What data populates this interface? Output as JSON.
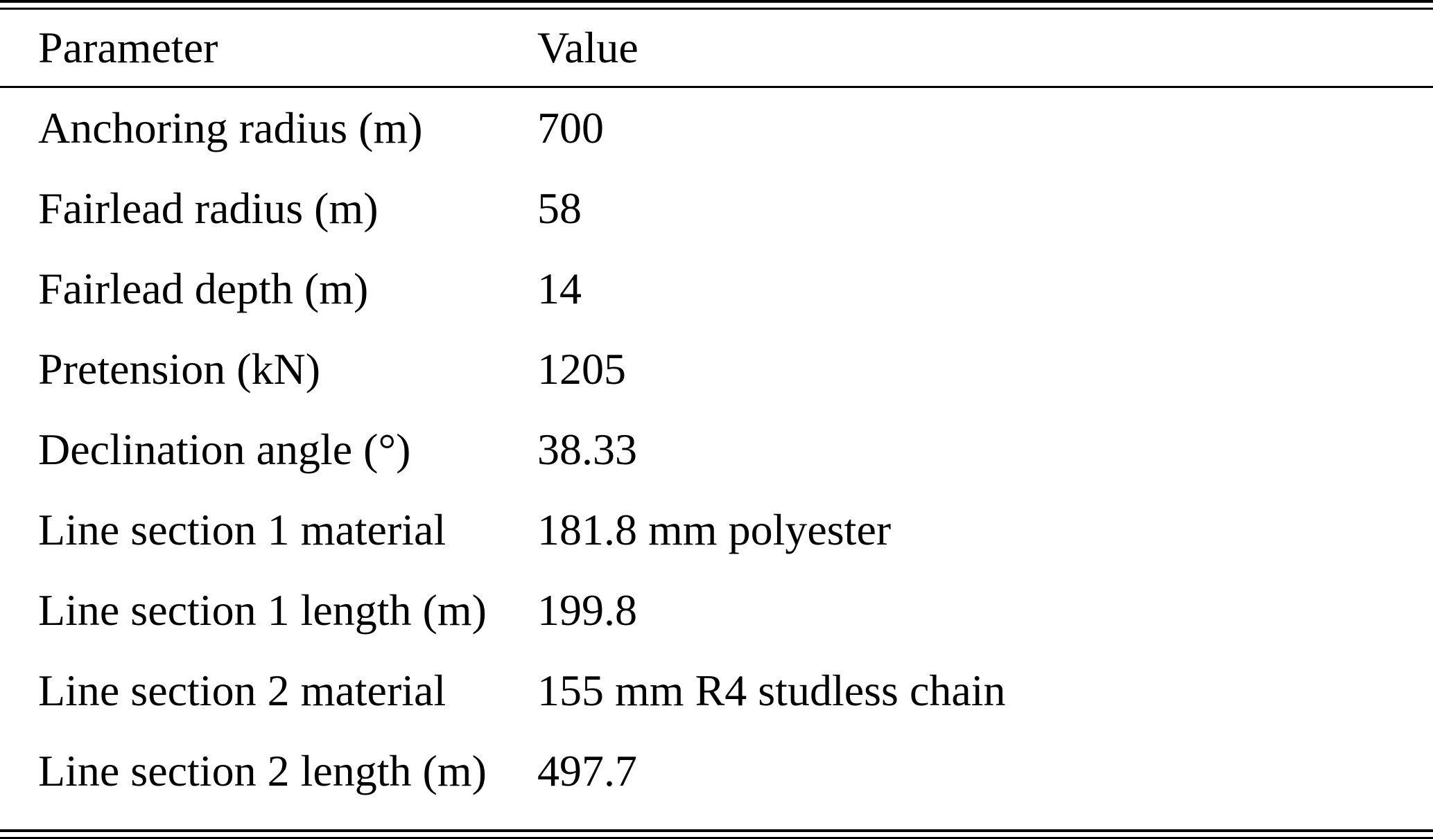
{
  "table": {
    "headers": {
      "parameter": "Parameter",
      "value": "Value"
    },
    "rows": [
      {
        "parameter": "Anchoring radius (m)",
        "value": "700"
      },
      {
        "parameter": "Fairlead radius (m)",
        "value": "58"
      },
      {
        "parameter": "Fairlead depth (m)",
        "value": "14"
      },
      {
        "parameter": "Pretension (kN)",
        "value": "1205"
      },
      {
        "parameter": "Declination angle (°)",
        "value": "38.33"
      },
      {
        "parameter": "Line section 1 material",
        "value": "181.8 mm polyester"
      },
      {
        "parameter": "Line section 1 length (m)",
        "value": "199.8"
      },
      {
        "parameter": "Line section 2 material",
        "value": "155 mm R4 studless chain"
      },
      {
        "parameter": "Line section 2 length (m)",
        "value": "497.7"
      }
    ],
    "colors": {
      "text": "#000000",
      "background": "#ffffff",
      "rule": "#000000"
    }
  }
}
